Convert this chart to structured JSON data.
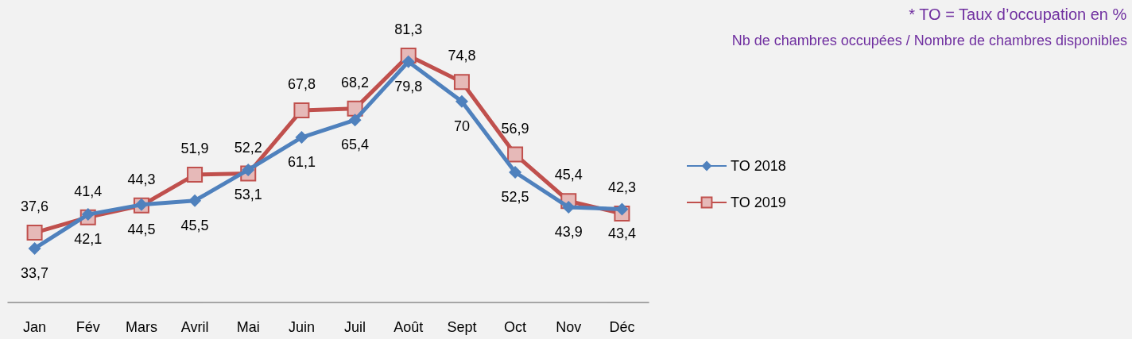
{
  "chart_data": {
    "type": "line",
    "categories": [
      "Jan",
      "Fév",
      "Mars",
      "Avril",
      "Mai",
      "Juin",
      "Juil",
      "Août",
      "Sept",
      "Oct",
      "Nov",
      "Déc"
    ],
    "series": [
      {
        "name": "TO 2018",
        "color": "#4f81bd",
        "marker": "diamond",
        "values": [
          33.7,
          42.1,
          44.5,
          45.5,
          53.1,
          61.1,
          65.4,
          79.8,
          70,
          52.5,
          43.9,
          43.4
        ],
        "value_labels": [
          "33,7",
          "42,1",
          "44,5",
          "45,5",
          "53,1",
          "61,1",
          "65,4",
          "79,8",
          "70",
          "52,5",
          "43,9",
          "43,4"
        ]
      },
      {
        "name": "TO 2019",
        "color": "#c0504d",
        "marker": "square",
        "values": [
          37.6,
          41.4,
          44.3,
          51.9,
          52.2,
          67.8,
          68.2,
          81.3,
          74.8,
          56.9,
          45.4,
          42.3
        ],
        "value_labels": [
          "37,6",
          "41,4",
          "44,3",
          "51,9",
          "52,2",
          "67,8",
          "68,2",
          "81,3",
          "74,8",
          "56,9",
          "45,4",
          "42,3"
        ]
      }
    ],
    "grid": false,
    "legend": "right",
    "annotations": [
      "* TO = Taux d’occupation en %",
      "Nb de chambres occupées / Nombre de chambres disponibles"
    ]
  }
}
